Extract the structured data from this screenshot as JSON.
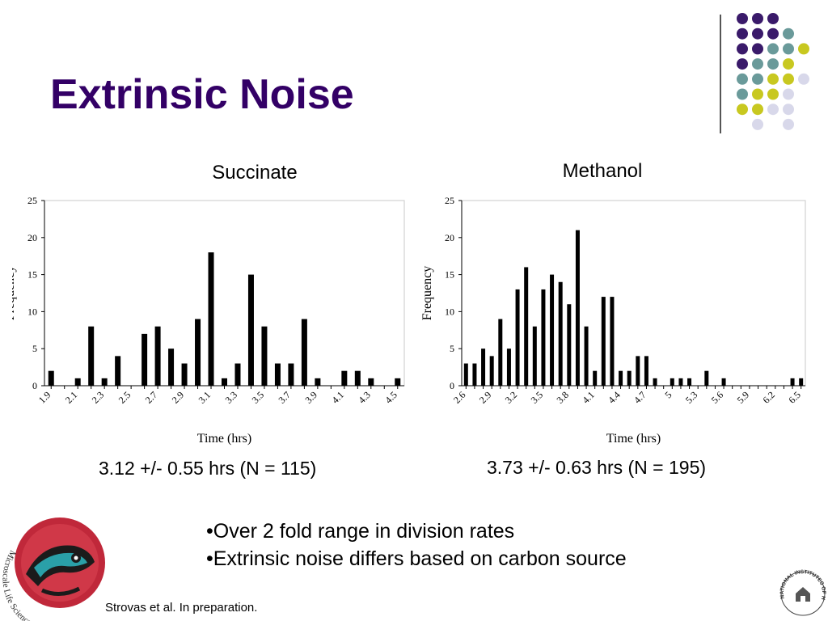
{
  "slide": {
    "title": "Extrinsic Noise",
    "left_stat": "3.12 +/- 0.55 hrs (N = 115)",
    "right_stat": "3.73 +/- 0.63 hrs (N = 195)",
    "bullets": [
      "•Over 2 fold range in division rates",
      "•Extrinsic noise differs based on carbon source"
    ],
    "citation": "Strovas et al. In preparation.",
    "logo_text": "Microscale Life Sciences Center",
    "nih_text": "NATIONAL INSTITUTES OF HEALTH"
  },
  "colors": {
    "title": "#330066",
    "purple": "#3a1a6a",
    "teal": "#6a9a9a",
    "yellow": "#c8c820",
    "lavender": "#d8d8ea",
    "bar": "#000000"
  },
  "decor_dots": [
    [
      "purple",
      "purple",
      "purple",
      "",
      ""
    ],
    [
      "purple",
      "purple",
      "purple",
      "teal",
      ""
    ],
    [
      "purple",
      "purple",
      "teal",
      "teal",
      "yellow"
    ],
    [
      "purple",
      "teal",
      "teal",
      "yellow",
      ""
    ],
    [
      "teal",
      "teal",
      "yellow",
      "yellow",
      "lavender"
    ],
    [
      "teal",
      "yellow",
      "yellow",
      "lavender",
      ""
    ],
    [
      "yellow",
      "yellow",
      "lavender",
      "lavender",
      ""
    ],
    [
      "",
      "lavender",
      "",
      "lavender",
      ""
    ]
  ],
  "chart_data": [
    {
      "type": "bar",
      "title": "Succinate",
      "xlabel": "Time (hrs)",
      "ylabel": "Frequency",
      "ylim": [
        0,
        25
      ],
      "yticks": [
        0,
        5,
        10,
        15,
        20,
        25
      ],
      "x": [
        1.9,
        2.0,
        2.1,
        2.2,
        2.3,
        2.4,
        2.5,
        2.6,
        2.7,
        2.8,
        2.9,
        3.0,
        3.1,
        3.2,
        3.3,
        3.4,
        3.5,
        3.6,
        3.7,
        3.8,
        3.9,
        4.0,
        4.1,
        4.2,
        4.3,
        4.4,
        4.5
      ],
      "values": [
        2,
        0,
        1,
        8,
        1,
        4,
        0,
        7,
        8,
        5,
        3,
        9,
        18,
        1,
        3,
        15,
        8,
        3,
        3,
        9,
        1,
        0,
        2,
        2,
        1,
        0,
        1
      ],
      "xtick_labels": [
        "1.9",
        "2.1",
        "2.3",
        "2.5",
        "2.7",
        "2.9",
        "3.1",
        "3.3",
        "3.5",
        "3.7",
        "3.9",
        "4.1",
        "4.3",
        "4.5"
      ],
      "grid": false,
      "legend": "none"
    },
    {
      "type": "bar",
      "title": "Methanol",
      "xlabel": "Time (hrs)",
      "ylabel": "Frequency",
      "ylim": [
        0,
        25
      ],
      "yticks": [
        0,
        5,
        10,
        15,
        20,
        25
      ],
      "x": [
        2.6,
        2.7,
        2.8,
        2.9,
        3.0,
        3.1,
        3.2,
        3.3,
        3.4,
        3.5,
        3.6,
        3.7,
        3.8,
        3.9,
        4.0,
        4.1,
        4.2,
        4.3,
        4.4,
        4.5,
        4.6,
        4.7,
        4.8,
        4.9,
        5.0,
        5.1,
        5.2,
        5.3,
        5.4,
        5.5,
        5.6,
        5.7,
        5.8,
        5.9,
        6.0,
        6.1,
        6.2,
        6.3,
        6.4,
        6.5
      ],
      "values": [
        3,
        3,
        5,
        4,
        9,
        5,
        13,
        16,
        8,
        13,
        15,
        14,
        11,
        21,
        8,
        2,
        12,
        12,
        2,
        2,
        4,
        4,
        1,
        0,
        1,
        1,
        1,
        0,
        2,
        0,
        1,
        0,
        0,
        0,
        0,
        0,
        0,
        0,
        1,
        1
      ],
      "xtick_labels": [
        "2.6",
        "2.9",
        "3.2",
        "3.5",
        "3.8",
        "4.1",
        "4.4",
        "4.7",
        "5",
        "5.3",
        "5.6",
        "5.9",
        "6.2",
        "6.5"
      ],
      "grid": false,
      "legend": "none"
    }
  ]
}
